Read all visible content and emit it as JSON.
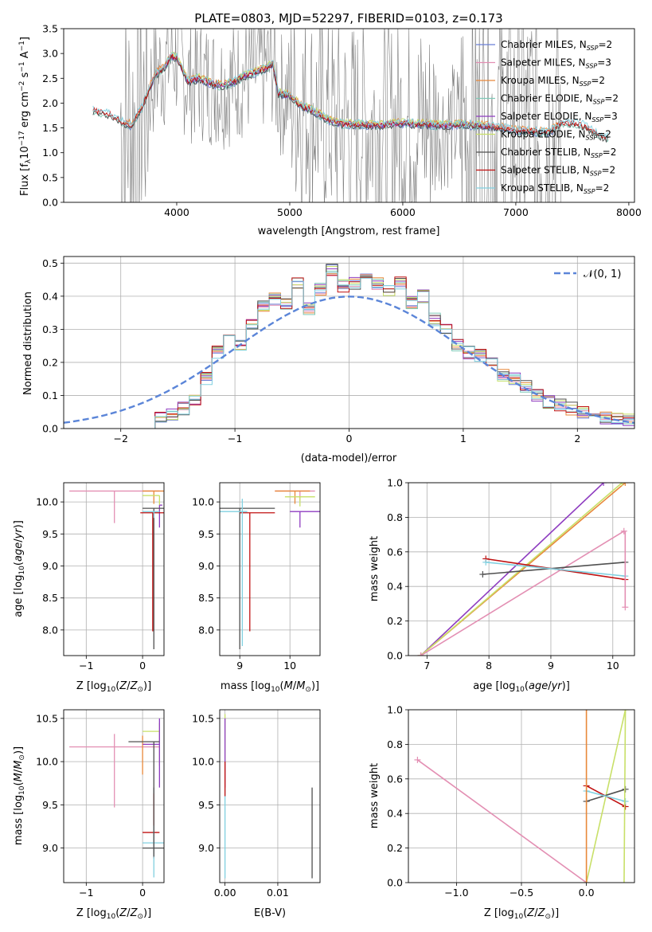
{
  "figure_title": "PLATE=0803, MJD=52297, FIBERID=0103, z=0.173",
  "colors": {
    "Chabrier MILES": "#6b7fd6",
    "Salpeter MILES": "#e38fb3",
    "Kroupa MILES": "#e8883a",
    "Chabrier ELODIE": "#7fc9b8",
    "Salpeter ELODIE": "#8e3cc0",
    "Kroupa ELODIE": "#c8e068",
    "Chabrier STELIB": "#505050",
    "Salpeter STELIB": "#c01010",
    "Kroupa STELIB": "#80d0e0",
    "data": "#808080",
    "normal": "#5b85d8",
    "grid": "#b0b0b0"
  },
  "chart_data": [
    {
      "type": "line",
      "panel": "spectrum",
      "title": "PLATE=0803, MJD=52297, FIBERID=0103, z=0.173",
      "xlabel": "wavelength [Angstrom, rest frame]",
      "ylabel": "Flux [f_λ10^-17 erg cm^-2 s^-1 A^-1]",
      "xlim": [
        3000,
        8050
      ],
      "ylim": [
        0,
        3.5
      ],
      "xticks": [
        4000,
        5000,
        6000,
        7000,
        8000
      ],
      "yticks": [
        0.0,
        0.5,
        1.0,
        1.5,
        2.0,
        2.5,
        3.0,
        3.5
      ],
      "legend": "top-right",
      "legend_entries": [
        "Chabrier MILES, N_SSP=2",
        "Salpeter MILES, N_SSP=3",
        "Kroupa MILES, N_SSP=2",
        "Chabrier ELODIE, N_SSP=2",
        "Salpeter ELODIE, N_SSP=3",
        "Kroupa ELODIE, N_SSP=2",
        "Chabrier STELIB, N_SSP=2",
        "Salpeter STELIB, N_SSP=2",
        "Kroupa STELIB, N_SSP=2"
      ],
      "model_continuum": {
        "x": [
          3260,
          3300,
          3400,
          3500,
          3600,
          3700,
          3800,
          3900,
          3950,
          4000,
          4100,
          4200,
          4300,
          4400,
          4500,
          4600,
          4700,
          4800,
          4850,
          4900,
          5000,
          5100,
          5200,
          5300,
          5400,
          5500,
          5600,
          5700,
          5800,
          5900,
          6000,
          6100,
          6200,
          6300,
          6400,
          6500,
          6600,
          6700,
          6800,
          6900,
          7000,
          7100,
          7200,
          7300,
          7400,
          7500,
          7600,
          7700,
          7800
        ],
        "y": [
          1.85,
          1.83,
          1.78,
          1.65,
          1.55,
          1.95,
          2.55,
          2.75,
          2.95,
          2.9,
          2.45,
          2.5,
          2.4,
          2.35,
          2.42,
          2.55,
          2.62,
          2.72,
          2.8,
          2.2,
          2.15,
          1.95,
          1.85,
          1.72,
          1.6,
          1.58,
          1.57,
          1.56,
          1.55,
          1.58,
          1.6,
          1.58,
          1.58,
          1.55,
          1.55,
          1.58,
          1.55,
          1.55,
          1.52,
          1.5,
          1.45,
          1.45,
          1.42,
          1.42,
          1.6,
          1.6,
          1.55,
          1.4,
          1.3
        ]
      },
      "data_range": [
        3500,
        7400
      ]
    },
    {
      "type": "line",
      "panel": "residuals",
      "xlabel": "(data-model)/error",
      "ylabel": "Normed distribution",
      "xlim": [
        -2.5,
        2.5
      ],
      "ylim": [
        0,
        0.52
      ],
      "xticks": [
        -2,
        -1,
        0,
        1,
        2
      ],
      "yticks": [
        0.0,
        0.1,
        0.2,
        0.3,
        0.4,
        0.5
      ],
      "legend": "top-right",
      "legend_entries": [
        "𝒩(0, 1)"
      ],
      "bin_edges": [
        -1.7,
        -1.6,
        -1.5,
        -1.4,
        -1.3,
        -1.2,
        -1.1,
        -1.0,
        -0.9,
        -0.8,
        -0.7,
        -0.6,
        -0.5,
        -0.4,
        -0.3,
        -0.2,
        -0.1,
        0.0,
        0.1,
        0.2,
        0.3,
        0.4,
        0.5,
        0.6,
        0.7,
        0.8,
        0.9,
        1.0,
        1.1,
        1.2,
        1.3,
        1.4,
        1.5,
        1.6,
        1.7,
        1.8,
        1.9,
        2.0,
        2.1,
        2.2,
        2.3,
        2.4,
        2.5
      ],
      "histogram": [
        0.03,
        0.04,
        0.06,
        0.09,
        0.15,
        0.23,
        0.27,
        0.25,
        0.32,
        0.37,
        0.39,
        0.38,
        0.44,
        0.36,
        0.42,
        0.48,
        0.43,
        0.44,
        0.45,
        0.44,
        0.42,
        0.44,
        0.38,
        0.4,
        0.33,
        0.3,
        0.25,
        0.23,
        0.22,
        0.2,
        0.16,
        0.15,
        0.13,
        0.1,
        0.08,
        0.07,
        0.06,
        0.05,
        0.04,
        0.03,
        0.03,
        0.025
      ],
      "normal_curve": {
        "mean": 0,
        "sigma": 1
      }
    },
    {
      "type": "scatter",
      "panel": "age-vs-metallicity",
      "xlabel": "Z [log10(Z/Z⊙)]",
      "ylabel": "age [log10(age/yr)]",
      "xlim": [
        -1.4,
        0.38
      ],
      "ylim": [
        7.6,
        10.3
      ],
      "xticks": [
        -1,
        0
      ],
      "yticks": [
        8.0,
        8.5,
        9.0,
        9.5,
        10.0
      ]
    },
    {
      "type": "scatter",
      "panel": "age-vs-mass",
      "xlabel": "mass [log10(M/M⊙)]",
      "xlim": [
        8.6,
        10.6
      ],
      "ylim": [
        7.6,
        10.3
      ],
      "xticks": [
        9,
        10
      ],
      "yticks": [
        8.0,
        8.5,
        9.0,
        9.5,
        10.0
      ]
    },
    {
      "type": "line",
      "panel": "mass-weight-vs-age",
      "xlabel": "age [log10(age/yr)]",
      "ylabel": "mass weight",
      "xlim": [
        6.7,
        10.35
      ],
      "ylim": [
        0,
        1.0
      ],
      "xticks": [
        7,
        8,
        9,
        10
      ],
      "yticks": [
        0.0,
        0.2,
        0.4,
        0.6,
        0.8,
        1.0
      ],
      "series": [
        {
          "name": "Salpeter ELODIE",
          "x": [
            6.9,
            9.85
          ],
          "y": [
            0.0,
            1.0
          ]
        },
        {
          "name": "Kroupa MILES",
          "x": [
            6.9,
            10.2
          ],
          "y": [
            0.0,
            1.0
          ]
        },
        {
          "name": "Kroupa ELODIE",
          "x": [
            6.9,
            10.15
          ],
          "y": [
            0.0,
            1.0
          ]
        },
        {
          "name": "Salpeter MILES",
          "x": [
            6.9,
            10.18
          ],
          "y": [
            0.0,
            0.72
          ]
        },
        {
          "name": "Chabrier STELIB",
          "x": [
            7.9,
            10.2
          ],
          "y": [
            0.47,
            0.54
          ]
        },
        {
          "name": "Salpeter STELIB",
          "x": [
            7.95,
            10.2
          ],
          "y": [
            0.56,
            0.44
          ]
        },
        {
          "name": "Kroupa STELIB",
          "x": [
            7.95,
            10.2
          ],
          "y": [
            0.54,
            0.46
          ]
        }
      ]
    },
    {
      "type": "scatter",
      "panel": "mass-vs-metallicity",
      "xlabel": "Z [log10(Z/Z⊙)]",
      "ylabel": "mass [log10(M/M⊙)]",
      "xlim": [
        -1.4,
        0.38
      ],
      "ylim": [
        8.6,
        10.6
      ],
      "xticks": [
        -1,
        0
      ],
      "yticks": [
        9.0,
        9.5,
        10.0,
        10.5
      ]
    },
    {
      "type": "scatter",
      "panel": "mass-vs-reddening",
      "xlabel": "E(B-V)",
      "xlim": [
        -0.001,
        0.018
      ],
      "ylim": [
        8.6,
        10.6
      ],
      "xticks": [
        0.0,
        0.01
      ],
      "yticks": [
        9.0,
        9.5,
        10.0,
        10.5
      ]
    },
    {
      "type": "line",
      "panel": "mass-weight-vs-metallicity",
      "xlabel": "Z [log10(Z/Z⊙)]",
      "ylabel": "mass weight",
      "xlim": [
        -1.37,
        0.37
      ],
      "ylim": [
        0,
        1.0
      ],
      "xticks": [
        -1.0,
        -0.5,
        0.0
      ],
      "yticks": [
        0.0,
        0.2,
        0.4,
        0.6,
        0.8,
        1.0
      ],
      "series": [
        {
          "name": "Salpeter MILES",
          "x": [
            -1.3,
            0.0
          ],
          "y": [
            0.71,
            0.0
          ]
        },
        {
          "name": "Kroupa ELODIE",
          "x": [
            0.0,
            0.3
          ],
          "y": [
            0.0,
            1.0
          ]
        },
        {
          "name": "Chabrier STELIB",
          "x": [
            0.0,
            0.3
          ],
          "y": [
            0.47,
            0.54
          ]
        },
        {
          "name": "Salpeter STELIB",
          "x": [
            0.0,
            0.3
          ],
          "y": [
            0.56,
            0.44
          ]
        },
        {
          "name": "Kroupa STELIB",
          "x": [
            0.0,
            0.3
          ],
          "y": [
            0.53,
            0.47
          ]
        }
      ]
    }
  ]
}
